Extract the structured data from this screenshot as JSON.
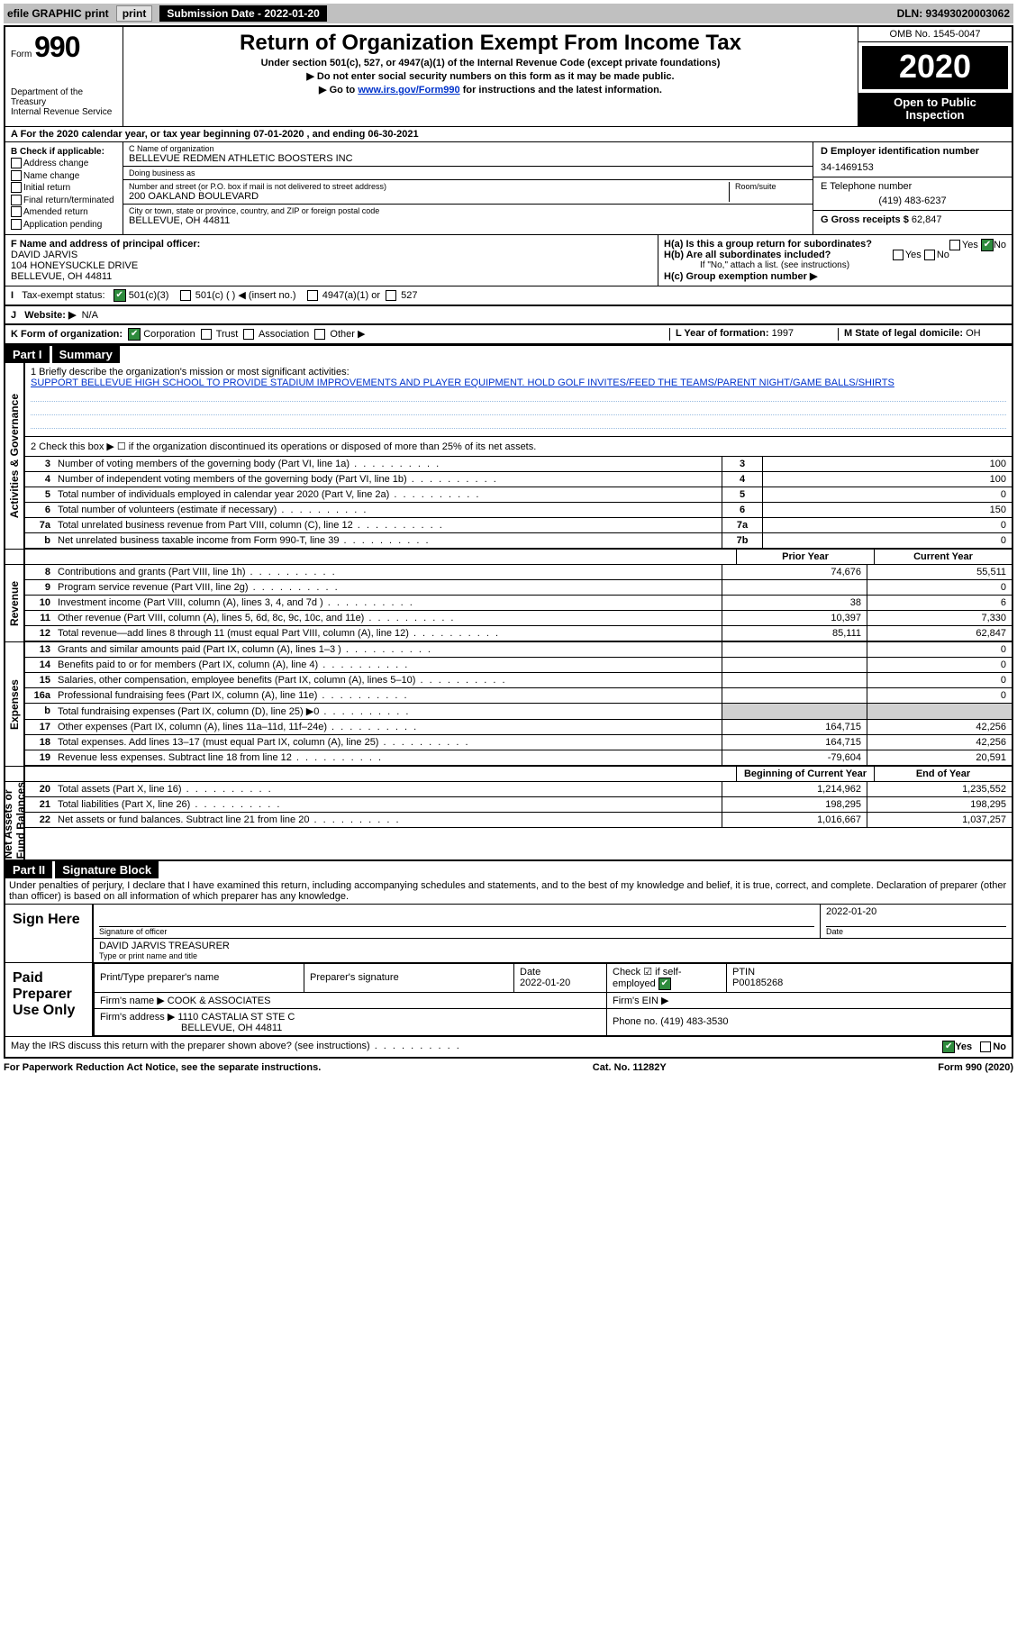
{
  "topbar": {
    "efile": "efile GRAPHIC print",
    "subDateLabel": "Submission Date - 2022-01-20",
    "dln": "DLN: 93493020003062"
  },
  "header": {
    "formWord": "Form",
    "formNum": "990",
    "deptLines": "Department of the Treasury\nInternal Revenue Service",
    "title": "Return of Organization Exempt From Income Tax",
    "sub1": "Under section 501(c), 527, or 4947(a)(1) of the Internal Revenue Code (except private foundations)",
    "sub2": "Do not enter social security numbers on this form as it may be made public.",
    "sub3a": "Go to ",
    "sub3link": "www.irs.gov/Form990",
    "sub3b": " for instructions and the latest information.",
    "omb": "OMB No. 1545-0047",
    "year": "2020",
    "openInsp": "Open to Public\nInspection"
  },
  "period": "A For the 2020 calendar year, or tax year beginning 07-01-2020   , and ending 06-30-2021",
  "B": {
    "hdr": "B Check if applicable:",
    "opts": [
      "Address change",
      "Name change",
      "Initial return",
      "Final return/terminated",
      "Amended return",
      "Application pending"
    ]
  },
  "C": {
    "nameLbl": "C Name of organization",
    "name": "BELLEVUE REDMEN ATHLETIC BOOSTERS INC",
    "dbaLbl": "Doing business as",
    "dba": "",
    "addrLbl": "Number and street (or P.O. box if mail is not delivered to street address)",
    "roomLbl": "Room/suite",
    "addr": "200 OAKLAND BOULEVARD",
    "cityLbl": "City or town, state or province, country, and ZIP or foreign postal code",
    "city": "BELLEVUE, OH  44811"
  },
  "D": {
    "lbl": "D Employer identification number",
    "val": "34-1469153"
  },
  "E": {
    "lbl": "E Telephone number",
    "val": "(419) 483-6237"
  },
  "G": {
    "lbl": "G Gross receipts $",
    "val": "62,847"
  },
  "F": {
    "lbl": "F  Name and address of principal officer:",
    "name": "DAVID JARVIS",
    "addr1": "104 HONEYSUCKLE DRIVE",
    "addr2": "BELLEVUE, OH  44811"
  },
  "H": {
    "ha": "H(a)  Is this a group return for subordinates?",
    "haYes": "Yes",
    "haNo": "No",
    "hb": "H(b)  Are all subordinates included?",
    "hbNote": "If \"No,\" attach a list. (see instructions)",
    "hc": "H(c)  Group exemption number ▶"
  },
  "I": {
    "lbl": "Tax-exempt status:",
    "o1": "501(c)(3)",
    "o2": "501(c) (  ) ◀ (insert no.)",
    "o3": "4947(a)(1) or",
    "o4": "527"
  },
  "J": {
    "lbl": "Website: ▶",
    "val": "N/A"
  },
  "K": {
    "lbl": "K Form of organization:",
    "o1": "Corporation",
    "o2": "Trust",
    "o3": "Association",
    "o4": "Other ▶"
  },
  "L": {
    "lbl": "L Year of formation:",
    "val": "1997"
  },
  "M": {
    "lbl": "M State of legal domicile:",
    "val": "OH"
  },
  "partI": {
    "label": "Part I",
    "title": "Summary",
    "missionLbl": "1   Briefly describe the organization's mission or most significant activities:",
    "mission": "SUPPORT BELLEVUE HIGH SCHOOL TO PROVIDE STADIUM IMPROVEMENTS AND PLAYER EQUIPMENT. HOLD GOLF INVITES/FEED THE TEAMS/PARENT NIGHT/GAME BALLS/SHIRTS",
    "line2": "2   Check this box ▶ ☐  if the organization discontinued its operations or disposed of more than 25% of its net assets.",
    "govSide": "Activities & Governance",
    "revSide": "Revenue",
    "expSide": "Expenses",
    "netSide": "Net Assets or\nFund Balances",
    "rows_gov": [
      {
        "n": "3",
        "t": "Number of voting members of the governing body (Part VI, line 1a)",
        "rn": "3",
        "v": "100"
      },
      {
        "n": "4",
        "t": "Number of independent voting members of the governing body (Part VI, line 1b)",
        "rn": "4",
        "v": "100"
      },
      {
        "n": "5",
        "t": "Total number of individuals employed in calendar year 2020 (Part V, line 2a)",
        "rn": "5",
        "v": "0"
      },
      {
        "n": "6",
        "t": "Total number of volunteers (estimate if necessary)",
        "rn": "6",
        "v": "150"
      },
      {
        "n": "7a",
        "t": "Total unrelated business revenue from Part VIII, column (C), line 12",
        "rn": "7a",
        "v": "0"
      },
      {
        "n": "b",
        "t": "Net unrelated business taxable income from Form 990-T, line 39",
        "rn": "7b",
        "v": "0"
      }
    ],
    "hdrPrior": "Prior Year",
    "hdrCurr": "Current Year",
    "rows_rev": [
      {
        "n": "8",
        "t": "Contributions and grants (Part VIII, line 1h)",
        "p": "74,676",
        "c": "55,511"
      },
      {
        "n": "9",
        "t": "Program service revenue (Part VIII, line 2g)",
        "p": "",
        "c": "0"
      },
      {
        "n": "10",
        "t": "Investment income (Part VIII, column (A), lines 3, 4, and 7d )",
        "p": "38",
        "c": "6"
      },
      {
        "n": "11",
        "t": "Other revenue (Part VIII, column (A), lines 5, 6d, 8c, 9c, 10c, and 11e)",
        "p": "10,397",
        "c": "7,330"
      },
      {
        "n": "12",
        "t": "Total revenue—add lines 8 through 11 (must equal Part VIII, column (A), line 12)",
        "p": "85,111",
        "c": "62,847"
      }
    ],
    "rows_exp": [
      {
        "n": "13",
        "t": "Grants and similar amounts paid (Part IX, column (A), lines 1–3 )",
        "p": "",
        "c": "0"
      },
      {
        "n": "14",
        "t": "Benefits paid to or for members (Part IX, column (A), line 4)",
        "p": "",
        "c": "0"
      },
      {
        "n": "15",
        "t": "Salaries, other compensation, employee benefits (Part IX, column (A), lines 5–10)",
        "p": "",
        "c": "0"
      },
      {
        "n": "16a",
        "t": "Professional fundraising fees (Part IX, column (A), line 11e)",
        "p": "",
        "c": "0"
      },
      {
        "n": "b",
        "t": "Total fundraising expenses (Part IX, column (D), line 25) ▶0",
        "p": "grey",
        "c": "grey"
      },
      {
        "n": "17",
        "t": "Other expenses (Part IX, column (A), lines 11a–11d, 11f–24e)",
        "p": "164,715",
        "c": "42,256"
      },
      {
        "n": "18",
        "t": "Total expenses. Add lines 13–17 (must equal Part IX, column (A), line 25)",
        "p": "164,715",
        "c": "42,256"
      },
      {
        "n": "19",
        "t": "Revenue less expenses. Subtract line 18 from line 12",
        "p": "-79,604",
        "c": "20,591"
      }
    ],
    "hdrBeg": "Beginning of Current Year",
    "hdrEnd": "End of Year",
    "rows_net": [
      {
        "n": "20",
        "t": "Total assets (Part X, line 16)",
        "p": "1,214,962",
        "c": "1,235,552"
      },
      {
        "n": "21",
        "t": "Total liabilities (Part X, line 26)",
        "p": "198,295",
        "c": "198,295"
      },
      {
        "n": "22",
        "t": "Net assets or fund balances. Subtract line 21 from line 20",
        "p": "1,016,667",
        "c": "1,037,257"
      }
    ]
  },
  "partII": {
    "label": "Part II",
    "title": "Signature Block"
  },
  "penalty": "Under penalties of perjury, I declare that I have examined this return, including accompanying schedules and statements, and to the best of my knowledge and belief, it is true, correct, and complete. Declaration of preparer (other than officer) is based on all information of which preparer has any knowledge.",
  "sign": {
    "side": "Sign Here",
    "sigLbl": "Signature of officer",
    "dateLbl": "Date",
    "date": "2022-01-20",
    "namePrint": "DAVID JARVIS TREASURER",
    "namePrintLbl": "Type or print name and title"
  },
  "prep": {
    "side": "Paid Preparer Use Only",
    "h1": "Print/Type preparer's name",
    "h2": "Preparer's signature",
    "h3": "Date",
    "h4": "Check ☑ if self-employed",
    "h5": "PTIN",
    "date": "2022-01-20",
    "ptin": "P00185268",
    "firmNameLbl": "Firm's name   ▶",
    "firmName": "COOK & ASSOCIATES",
    "firmEinLbl": "Firm's EIN ▶",
    "firmAddrLbl": "Firm's address ▶",
    "firmAddr": "1110 CASTALIA ST STE C",
    "firmAddr2": "BELLEVUE, OH  44811",
    "phoneLbl": "Phone no.",
    "phone": "(419) 483-3530"
  },
  "discuss": {
    "txt": "May the IRS discuss this return with the preparer shown above? (see instructions)",
    "yes": "Yes",
    "no": "No"
  },
  "footer": {
    "left": "For Paperwork Reduction Act Notice, see the separate instructions.",
    "mid": "Cat. No. 11282Y",
    "right": "Form 990 (2020)"
  }
}
